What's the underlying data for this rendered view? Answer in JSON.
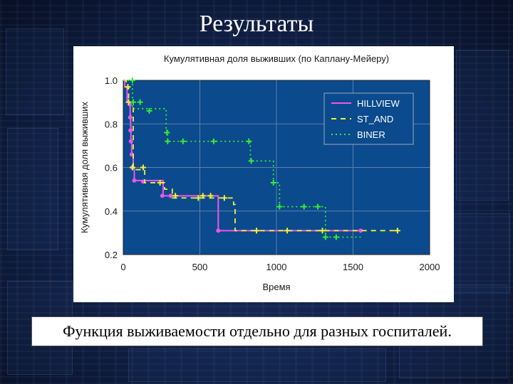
{
  "slide": {
    "title": "Результаты",
    "caption": "Функция выживаемости отдельно для разных госпиталей."
  },
  "colors": {
    "background": "#0c1a3a",
    "plot_background": "#0b4a8c",
    "grid": "#5a7fb0",
    "text": "#1a1a1a",
    "hillview": "#ee55ee",
    "st_and": "#f2f23a",
    "biner": "#33ee33"
  },
  "chart_data": {
    "type": "line",
    "step": true,
    "title": "Кумулятивная доля выживших (по Каплану-Мейеру)",
    "xlabel": "Время",
    "ylabel": "Кумулятивная доля выживших",
    "xlim": [
      0,
      2000
    ],
    "ylim": [
      0.2,
      1.0
    ],
    "xticks": [
      0,
      500,
      1000,
      1500,
      2000
    ],
    "yticks": [
      0.2,
      0.4,
      0.6,
      0.8,
      1.0
    ],
    "ytick_labels": [
      "0.2",
      "0.4",
      "0.6",
      "0.8",
      "1.0"
    ],
    "grid": true,
    "legend": "top-right",
    "series": [
      {
        "name": "HILLVIEW",
        "style": "solid",
        "color_key": "hillview",
        "steps": [
          [
            0,
            1.0
          ],
          [
            10,
            0.97
          ],
          [
            25,
            0.9
          ],
          [
            45,
            0.84
          ],
          [
            48,
            0.79
          ],
          [
            50,
            0.72
          ],
          [
            55,
            0.66
          ],
          [
            65,
            0.6
          ],
          [
            72,
            0.54
          ],
          [
            260,
            0.47
          ],
          [
            620,
            0.31
          ],
          [
            1550,
            0.31
          ]
        ],
        "markers": [
          [
            42,
            0.89
          ],
          [
            45,
            0.83
          ],
          [
            47,
            0.77
          ],
          [
            50,
            0.72
          ],
          [
            55,
            0.66
          ],
          [
            60,
            0.6
          ],
          [
            72,
            0.54
          ],
          [
            130,
            0.535
          ],
          [
            255,
            0.47
          ],
          [
            310,
            0.47
          ],
          [
            620,
            0.31
          ],
          [
            1550,
            0.31
          ]
        ]
      },
      {
        "name": "ST_AND",
        "style": "dashed",
        "color_key": "st_and",
        "steps": [
          [
            0,
            1.0
          ],
          [
            20,
            0.97
          ],
          [
            35,
            0.9
          ],
          [
            65,
            0.59
          ],
          [
            120,
            0.59
          ],
          [
            140,
            0.53
          ],
          [
            270,
            0.5
          ],
          [
            320,
            0.46
          ],
          [
            720,
            0.43
          ],
          [
            730,
            0.31
          ],
          [
            1790,
            0.31
          ]
        ],
        "markers": [
          [
            30,
            0.97
          ],
          [
            35,
            0.9
          ],
          [
            60,
            0.6
          ],
          [
            130,
            0.6
          ],
          [
            240,
            0.53
          ],
          [
            340,
            0.47
          ],
          [
            490,
            0.46
          ],
          [
            520,
            0.47
          ],
          [
            570,
            0.47
          ],
          [
            660,
            0.46
          ],
          [
            870,
            0.31
          ],
          [
            1070,
            0.31
          ],
          [
            1300,
            0.31
          ],
          [
            1790,
            0.31
          ]
        ]
      },
      {
        "name": "BINER",
        "style": "dotted",
        "color_key": "biner",
        "steps": [
          [
            0,
            1.0
          ],
          [
            40,
            1.0
          ],
          [
            60,
            0.87
          ],
          [
            280,
            0.78
          ],
          [
            290,
            0.72
          ],
          [
            830,
            0.63
          ],
          [
            980,
            0.53
          ],
          [
            1020,
            0.42
          ],
          [
            1320,
            0.28
          ],
          [
            1550,
            0.28
          ]
        ],
        "markers": [
          [
            60,
            1.0
          ],
          [
            65,
            0.9
          ],
          [
            110,
            0.9
          ],
          [
            170,
            0.86
          ],
          [
            285,
            0.76
          ],
          [
            290,
            0.72
          ],
          [
            390,
            0.72
          ],
          [
            590,
            0.72
          ],
          [
            820,
            0.72
          ],
          [
            835,
            0.63
          ],
          [
            980,
            0.53
          ],
          [
            1020,
            0.42
          ],
          [
            1180,
            0.42
          ],
          [
            1270,
            0.42
          ],
          [
            1320,
            0.28
          ],
          [
            1390,
            0.28
          ]
        ]
      }
    ]
  }
}
